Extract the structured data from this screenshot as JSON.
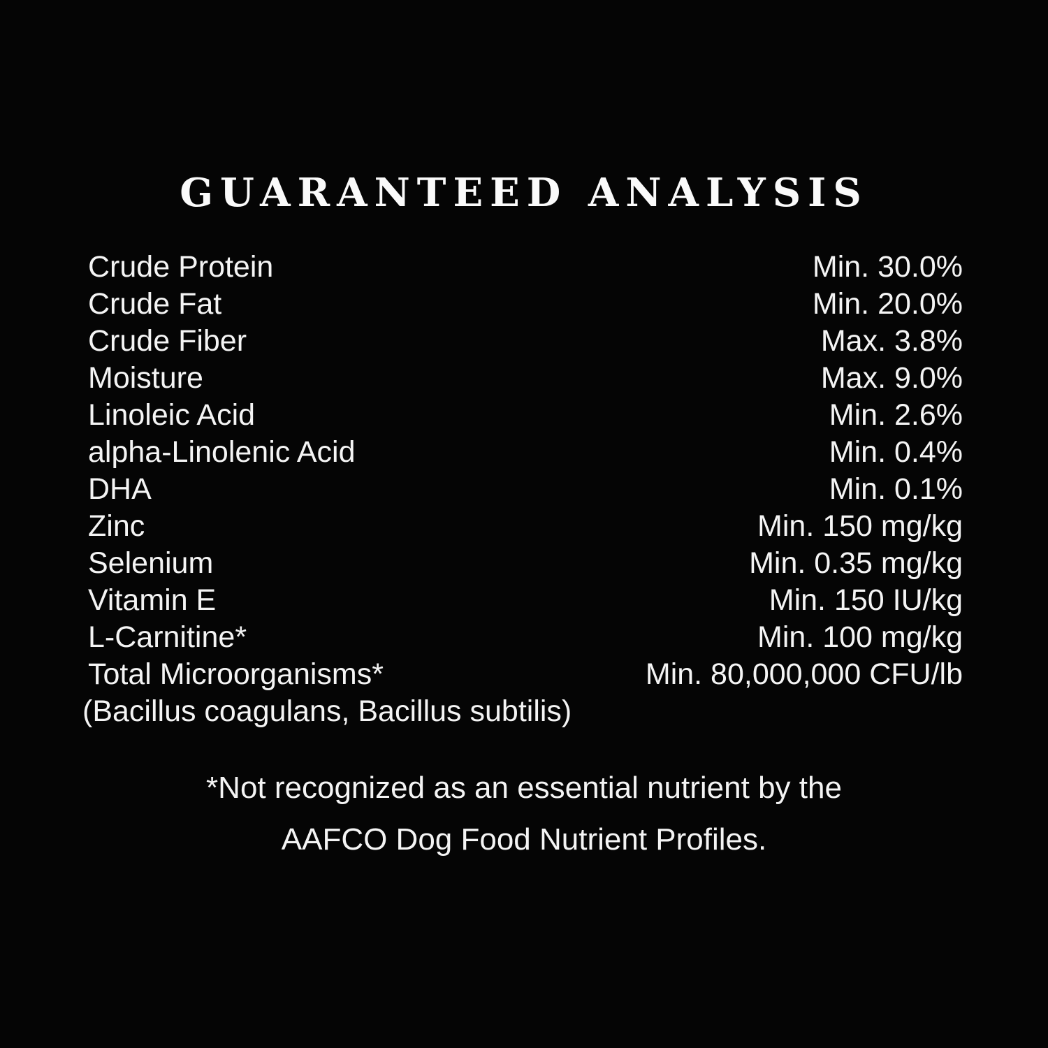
{
  "page": {
    "background_color": "#050505",
    "text_color": "#f4f4f4"
  },
  "title": "GUARANTEED ANALYSIS",
  "analysis": {
    "rows": [
      {
        "label": "Crude Protein",
        "value": "Min. 30.0%"
      },
      {
        "label": "Crude Fat",
        "value": "Min. 20.0%"
      },
      {
        "label": "Crude Fiber",
        "value": "Max. 3.8%"
      },
      {
        "label": "Moisture",
        "value": "Max. 9.0%"
      },
      {
        "label": "Linoleic Acid",
        "value": "Min. 2.6%"
      },
      {
        "label": "alpha-Linolenic Acid",
        "value": "Min. 0.4%"
      },
      {
        "label": "DHA",
        "value": "Min. 0.1%"
      },
      {
        "label": "Zinc",
        "value": "Min. 150 mg/kg"
      },
      {
        "label": "Selenium",
        "value": "Min. 0.35 mg/kg"
      },
      {
        "label": "Vitamin E",
        "value": "Min. 150 IU/kg"
      },
      {
        "label": "L-Carnitine*",
        "value": "Min. 100 mg/kg"
      },
      {
        "label": "Total Microorganisms*",
        "value": "Min. 80,000,000 CFU/lb"
      }
    ],
    "continuation": "(Bacillus coagulans, Bacillus subtilis)"
  },
  "footnote": {
    "line1": "*Not recognized as an essential nutrient by the",
    "line2": "AAFCO Dog Food Nutrient Profiles."
  }
}
